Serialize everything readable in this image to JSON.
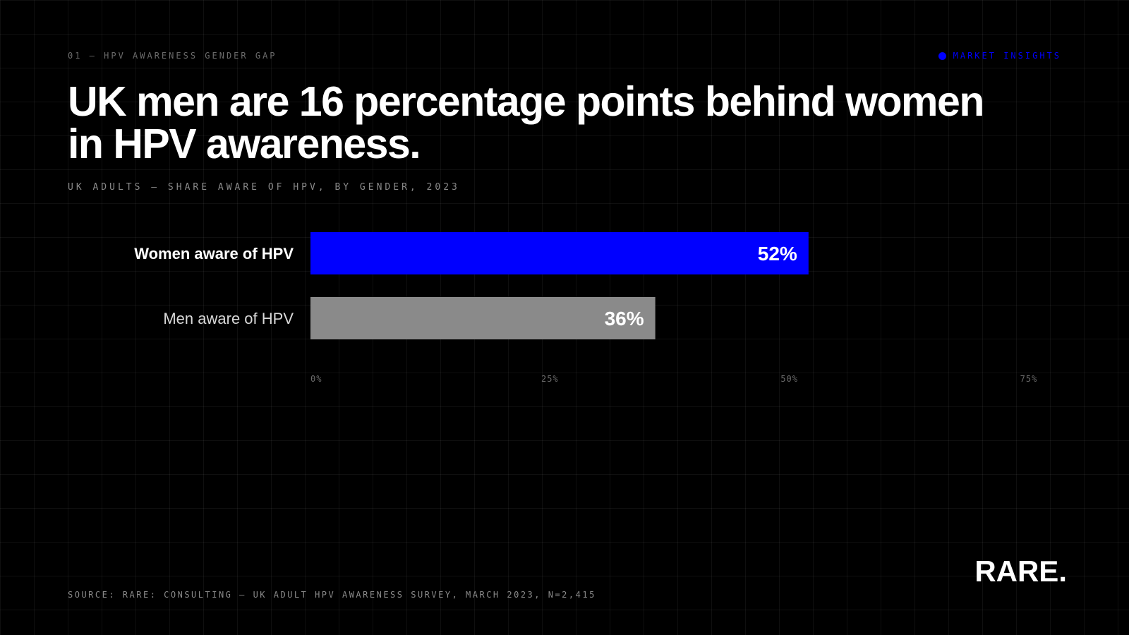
{
  "eyebrow": "01 — HPV AWARENESS GENDER GAP",
  "tag": "MARKET INSIGHTS",
  "headline": "UK men are 16 percentage points behind women in HPV awareness.",
  "subtitle": "UK ADULTS — SHARE AWARE OF HPV, BY GENDER, 2023",
  "source": "SOURCE: RARE: CONSULTING — UK ADULT HPV AWARENESS SURVEY, MARCH 2023, N=2,415",
  "logo": "RARE.",
  "colors": {
    "background": "#000000",
    "accent": "#0000ff",
    "neutral_bar": "#8a8a8a",
    "text": "#ffffff"
  },
  "chart_data": {
    "type": "bar",
    "orientation": "horizontal",
    "categories": [
      "Women aware of HPV",
      "Men aware of HPV"
    ],
    "values": [
      52,
      36
    ],
    "value_labels": [
      "52%",
      "36%"
    ],
    "bar_colors": [
      "#0000ff",
      "#8a8a8a"
    ],
    "xlim": [
      0,
      75
    ],
    "ticks": [
      0,
      25,
      50,
      75
    ],
    "tick_labels": [
      "0%",
      "25%",
      "50%",
      "75%"
    ],
    "grid": true
  }
}
